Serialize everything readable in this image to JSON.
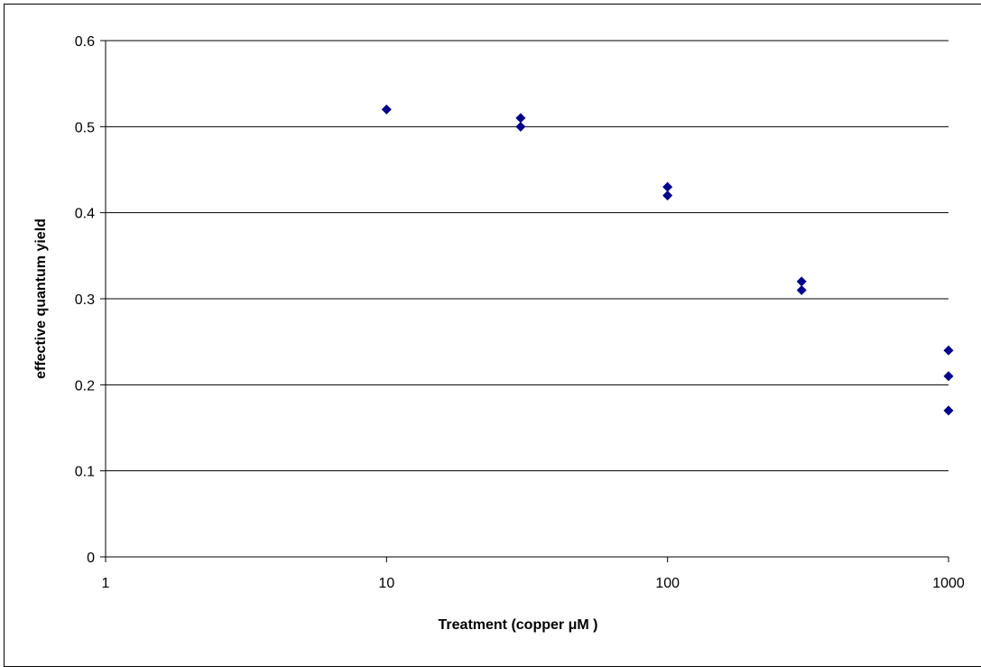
{
  "chart_data": {
    "type": "scatter",
    "title": "",
    "xlabel": "Treatment (copper μM )",
    "ylabel": "effective quantum yield",
    "x_scale": "log",
    "xlim": [
      1,
      1000
    ],
    "ylim": [
      0,
      0.6
    ],
    "x_ticks": [
      1,
      10,
      100,
      1000
    ],
    "x_tick_labels": [
      "1",
      "10",
      "100",
      "1000"
    ],
    "y_ticks": [
      0,
      0.1,
      0.2,
      0.3,
      0.4,
      0.5,
      0.6
    ],
    "y_tick_labels": [
      "0",
      "0.1",
      "0.2",
      "0.3",
      "0.4",
      "0.5",
      "0.6"
    ],
    "grid": "horizontal major gridlines",
    "legend": "none",
    "marker": "diamond",
    "marker_color": "#00008B",
    "series": [
      {
        "points": [
          {
            "x": 10,
            "y": 0.52
          },
          {
            "x": 30,
            "y": 0.51
          },
          {
            "x": 30,
            "y": 0.5
          },
          {
            "x": 100,
            "y": 0.43
          },
          {
            "x": 100,
            "y": 0.42
          },
          {
            "x": 300,
            "y": 0.32
          },
          {
            "x": 300,
            "y": 0.31
          },
          {
            "x": 1000,
            "y": 0.24
          },
          {
            "x": 1000,
            "y": 0.21
          },
          {
            "x": 1000,
            "y": 0.17
          }
        ]
      }
    ]
  }
}
